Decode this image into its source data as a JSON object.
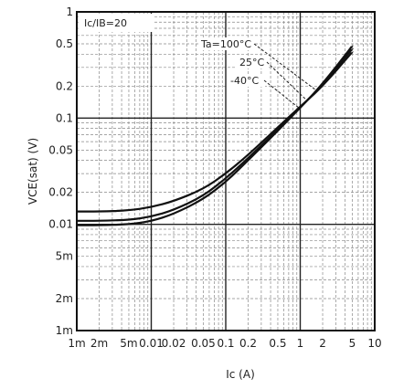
{
  "chart_data": {
    "type": "line",
    "x_scale": "log",
    "y_scale": "log",
    "xlim": [
      0.001,
      10
    ],
    "ylim": [
      0.001,
      1
    ],
    "xlabel": "Ic (A)",
    "ylabel": "VCE(sat) (V)",
    "grid": true,
    "x_ticks": [
      {
        "value": 0.001,
        "label": "1m"
      },
      {
        "value": 0.002,
        "label": "2m"
      },
      {
        "value": 0.005,
        "label": "5m"
      },
      {
        "value": 0.01,
        "label": "0.01"
      },
      {
        "value": 0.02,
        "label": "0.02"
      },
      {
        "value": 0.05,
        "label": "0.05"
      },
      {
        "value": 0.1,
        "label": "0.1"
      },
      {
        "value": 0.2,
        "label": "0.2"
      },
      {
        "value": 0.5,
        "label": "0.5"
      },
      {
        "value": 1,
        "label": "1"
      },
      {
        "value": 2,
        "label": "2"
      },
      {
        "value": 5,
        "label": "5"
      },
      {
        "value": 10,
        "label": "10"
      }
    ],
    "y_ticks": [
      {
        "value": 1,
        "label": "1"
      },
      {
        "value": 0.5,
        "label": "0.5"
      },
      {
        "value": 0.2,
        "label": "0.2"
      },
      {
        "value": 0.1,
        "label": "0.1"
      },
      {
        "value": 0.05,
        "label": "0.05"
      },
      {
        "value": 0.02,
        "label": "0.02"
      },
      {
        "value": 0.01,
        "label": "0.01"
      },
      {
        "value": 0.005,
        "label": "5m"
      },
      {
        "value": 0.002,
        "label": "2m"
      },
      {
        "value": 0.001,
        "label": "1m"
      }
    ],
    "condition_label": "Ic/IB=20",
    "series": [
      {
        "name": "Ta=100°C",
        "x": [
          0.001,
          0.002,
          0.005,
          0.01,
          0.02,
          0.05,
          0.1,
          0.2,
          0.5,
          1,
          2,
          5
        ],
        "y": [
          0.0132,
          0.0132,
          0.0135,
          0.0145,
          0.0165,
          0.0215,
          0.03,
          0.045,
          0.082,
          0.128,
          0.2,
          0.42
        ]
      },
      {
        "name": "25°C",
        "x": [
          0.001,
          0.002,
          0.005,
          0.01,
          0.02,
          0.05,
          0.1,
          0.2,
          0.5,
          1,
          2,
          5
        ],
        "y": [
          0.0108,
          0.0108,
          0.011,
          0.0118,
          0.0136,
          0.0185,
          0.027,
          0.042,
          0.078,
          0.126,
          0.205,
          0.45
        ]
      },
      {
        "name": "-40°C",
        "x": [
          0.001,
          0.002,
          0.005,
          0.01,
          0.02,
          0.05,
          0.1,
          0.2,
          0.5,
          1,
          2,
          5
        ],
        "y": [
          0.0098,
          0.0098,
          0.01,
          0.0107,
          0.0125,
          0.0172,
          0.025,
          0.04,
          0.076,
          0.125,
          0.21,
          0.48
        ]
      }
    ]
  }
}
